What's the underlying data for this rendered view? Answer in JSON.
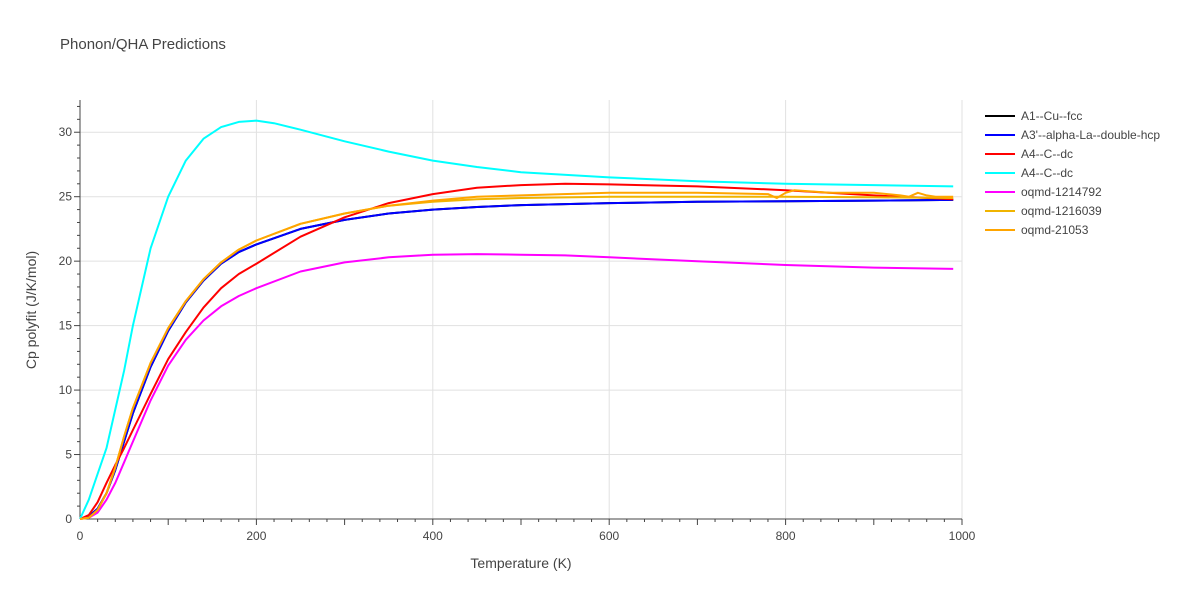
{
  "chart_data": {
    "type": "line",
    "title": "Phonon/QHA Predictions",
    "xlabel": "Temperature (K)",
    "ylabel": "Cp polyfit (J/K/mol)",
    "xlim": [
      0,
      1000
    ],
    "ylim": [
      0,
      32.5
    ],
    "xticks": [
      0,
      200,
      400,
      600,
      800,
      1000
    ],
    "yticks": [
      0,
      5,
      10,
      15,
      20,
      25,
      30
    ],
    "grid": true,
    "legend_position": "right",
    "series": [
      {
        "name": "A1--Cu--fcc",
        "color": "#000000",
        "x": [
          0,
          10,
          20,
          30,
          40,
          50,
          60,
          80,
          100,
          120,
          140,
          160,
          180,
          200,
          250,
          300,
          350,
          400,
          450,
          500,
          600,
          700,
          800,
          900,
          990
        ],
        "y": [
          0,
          0.2,
          0.8,
          2,
          3.8,
          6,
          8.2,
          11.8,
          14.6,
          16.8,
          18.5,
          19.8,
          20.7,
          21.3,
          22.5,
          23.2,
          23.7,
          24,
          24.2,
          24.35,
          24.5,
          24.6,
          24.65,
          24.7,
          24.75
        ]
      },
      {
        "name": "A3'--alpha-La--double-hcp",
        "color": "#0000ff",
        "x": [
          0,
          10,
          20,
          30,
          40,
          50,
          60,
          80,
          100,
          120,
          140,
          160,
          180,
          200,
          250,
          300,
          350,
          400,
          450,
          500,
          600,
          700,
          800,
          900,
          990
        ],
        "y": [
          0,
          0.2,
          0.8,
          2,
          3.8,
          6,
          8.2,
          11.8,
          14.6,
          16.8,
          18.5,
          19.8,
          20.7,
          21.3,
          22.5,
          23.2,
          23.7,
          24,
          24.2,
          24.35,
          24.5,
          24.6,
          24.65,
          24.7,
          24.75
        ]
      },
      {
        "name": "A4--C--dc",
        "color": "#ff0000",
        "x": [
          0,
          10,
          20,
          30,
          40,
          50,
          60,
          80,
          100,
          120,
          140,
          160,
          180,
          200,
          250,
          300,
          350,
          400,
          450,
          500,
          550,
          600,
          700,
          800,
          900,
          990
        ],
        "y": [
          0,
          0.3,
          1.3,
          2.8,
          4.2,
          5.5,
          6.9,
          9.7,
          12.4,
          14.5,
          16.4,
          17.9,
          19,
          19.8,
          21.9,
          23.4,
          24.5,
          25.2,
          25.7,
          25.9,
          26,
          25.95,
          25.8,
          25.5,
          25.1,
          24.8
        ]
      },
      {
        "name": "A4--C--dc",
        "color": "#00ffff",
        "x": [
          0,
          10,
          20,
          30,
          40,
          50,
          60,
          80,
          100,
          120,
          140,
          160,
          180,
          200,
          220,
          250,
          300,
          350,
          400,
          450,
          500,
          600,
          700,
          800,
          900,
          990
        ],
        "y": [
          0,
          1.5,
          3.5,
          5.5,
          8.5,
          11.5,
          15,
          21,
          25,
          27.8,
          29.5,
          30.4,
          30.8,
          30.9,
          30.7,
          30.2,
          29.3,
          28.5,
          27.8,
          27.3,
          26.9,
          26.5,
          26.2,
          26,
          25.9,
          25.8
        ]
      },
      {
        "name": "oqmd-1214792",
        "color": "#ff00ff",
        "x": [
          0,
          10,
          20,
          30,
          40,
          50,
          60,
          80,
          100,
          120,
          140,
          160,
          180,
          200,
          250,
          300,
          350,
          400,
          450,
          500,
          550,
          600,
          700,
          800,
          900,
          990
        ],
        "y": [
          0,
          0.1,
          0.5,
          1.5,
          2.8,
          4.4,
          6,
          9.2,
          11.9,
          13.9,
          15.4,
          16.5,
          17.3,
          17.9,
          19.2,
          19.9,
          20.3,
          20.5,
          20.55,
          20.5,
          20.45,
          20.3,
          20,
          19.7,
          19.5,
          19.4
        ]
      },
      {
        "name": "oqmd-1216039",
        "color": "#f0b400",
        "x": [
          0,
          10,
          20,
          30,
          40,
          50,
          60,
          80,
          100,
          120,
          140,
          160,
          180,
          200,
          250,
          300,
          350,
          400,
          450,
          500,
          600,
          700,
          800,
          900,
          990
        ],
        "y": [
          0,
          0.1,
          0.7,
          2,
          4,
          6.4,
          8.6,
          12.1,
          14.8,
          16.9,
          18.6,
          19.9,
          20.9,
          21.6,
          22.9,
          23.7,
          24.3,
          24.6,
          24.8,
          24.9,
          25,
          25,
          25,
          24.95,
          24.9
        ]
      },
      {
        "name": "oqmd-21053",
        "color": "#ffa500",
        "x": [
          0,
          10,
          20,
          30,
          40,
          50,
          60,
          80,
          100,
          120,
          140,
          160,
          180,
          200,
          250,
          300,
          350,
          400,
          450,
          500,
          600,
          700,
          780,
          790,
          800,
          810,
          850,
          900,
          930,
          940,
          950,
          960,
          970,
          990
        ],
        "y": [
          0,
          0.1,
          0.7,
          2,
          4,
          6.4,
          8.6,
          12.1,
          14.8,
          16.9,
          18.6,
          19.9,
          20.9,
          21.6,
          22.9,
          23.7,
          24.3,
          24.7,
          25,
          25.1,
          25.3,
          25.3,
          25.2,
          24.9,
          25.3,
          25.5,
          25.3,
          25.3,
          25.1,
          25,
          25.3,
          25.1,
          25,
          25
        ]
      }
    ]
  }
}
